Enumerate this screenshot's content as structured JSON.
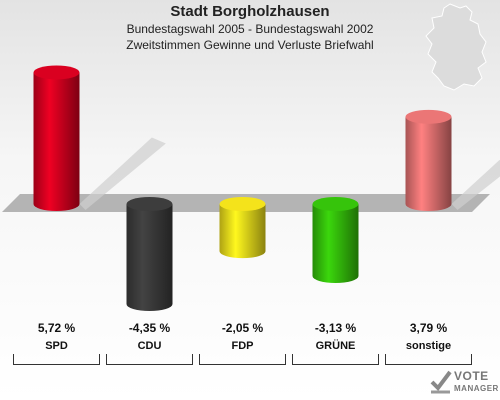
{
  "chart_data": {
    "type": "bar",
    "title": "Stadt Borgholzhausen",
    "subtitle_1": "Bundestagswahl 2005 - Bundestagswahl 2002",
    "subtitle_2": "Zweitstimmen Gewinne und Verluste Briefwahl",
    "categories": [
      "SPD",
      "CDU",
      "FDP",
      "GRÜNE",
      "sonstige"
    ],
    "values": [
      5.72,
      -4.35,
      -2.05,
      -3.13,
      3.79
    ],
    "value_labels": [
      "5,72 %",
      "-4,35 %",
      "-2,05 %",
      "-3,13 %",
      "3,79 %"
    ],
    "colors": [
      "#d0001e",
      "#3a3a3a",
      "#e8d81a",
      "#33bb0a",
      "#e07070"
    ],
    "grid": false
  },
  "logo": {
    "line1": "VOTE",
    "line2": "MANAGER"
  }
}
